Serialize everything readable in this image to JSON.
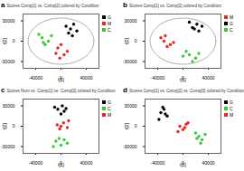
{
  "chart_data": [
    {
      "type": "scatter",
      "panel": "a",
      "title": "Scores Comp[1] vs. Comp[2] colored by Condition",
      "x_label": "t[1]",
      "y_label": "t[2]",
      "xlim": [
        -60000,
        60000
      ],
      "xticks": [
        -40000,
        0,
        40000
      ],
      "ylim": [
        -40000,
        40000
      ],
      "yticks": [
        -30000,
        0,
        30000
      ],
      "ellipse": {
        "x_radius": 52000,
        "y_radius": 34000
      },
      "series": [
        {
          "name": "G",
          "color": "#000000",
          "values": [
            [
              8000,
              22000
            ],
            [
              15000,
              18000
            ],
            [
              20000,
              25000
            ],
            [
              12000,
              12000
            ],
            [
              25000,
              15000
            ],
            [
              18000,
              8000
            ]
          ]
        },
        {
          "name": "M",
          "color": "#e8281e",
          "values": [
            [
              -5000,
              -10000
            ],
            [
              5000,
              -20000
            ],
            [
              -2000,
              -25000
            ],
            [
              10000,
              -15000
            ],
            [
              0,
              -5000
            ],
            [
              -8000,
              -18000
            ]
          ]
        },
        {
          "name": "C",
          "color": "#3cc83c",
          "values": [
            [
              -30000,
              5000
            ],
            [
              -25000,
              -5000
            ],
            [
              -35000,
              10000
            ],
            [
              -20000,
              0
            ],
            [
              -28000,
              -2000
            ],
            [
              -15000,
              8000
            ]
          ]
        }
      ]
    },
    {
      "type": "scatter",
      "panel": "b",
      "title": "Scores Comp[1] vs. Comp[2] colored by Condition",
      "x_label": "t[1]",
      "y_label": "t[2]",
      "xlim": [
        -60000,
        60000
      ],
      "xticks": [
        -40000,
        0,
        40000
      ],
      "ylim": [
        -40000,
        40000
      ],
      "yticks": [
        -30000,
        0,
        30000
      ],
      "ellipse": {
        "x_radius": 52000,
        "y_radius": 34000
      },
      "series": [
        {
          "name": "M",
          "color": "#e8281e",
          "values": [
            [
              -30000,
              0
            ],
            [
              -25000,
              -8000
            ],
            [
              -35000,
              5000
            ],
            [
              -20000,
              -5000
            ],
            [
              -28000,
              8000
            ],
            [
              -15000,
              -2000
            ]
          ]
        },
        {
          "name": "G",
          "color": "#000000",
          "values": [
            [
              15000,
              20000
            ],
            [
              22000,
              25000
            ],
            [
              10000,
              28000
            ],
            [
              25000,
              15000
            ],
            [
              18000,
              18000
            ],
            [
              30000,
              22000
            ]
          ]
        },
        {
          "name": "C",
          "color": "#3cc83c",
          "values": [
            [
              10000,
              -20000
            ],
            [
              20000,
              -25000
            ],
            [
              5000,
              -15000
            ],
            [
              15000,
              -30000
            ],
            [
              25000,
              -18000
            ],
            [
              0,
              -22000
            ]
          ]
        }
      ]
    },
    {
      "type": "scatter",
      "panel": "c",
      "title": "Scores Num vs. Comp[1] vs. Comp[2] colored by Condition",
      "x_label": "t[1]",
      "y_label": "t[2]",
      "xlim": [
        -60000,
        60000
      ],
      "xticks": [
        -40000,
        0,
        40000
      ],
      "ylim": [
        -40000,
        40000
      ],
      "yticks": [
        -30000,
        0,
        30000
      ],
      "series": [
        {
          "name": "G",
          "color": "#000000",
          "values": [
            [
              -5000,
              25000
            ],
            [
              2000,
              30000
            ],
            [
              5000,
              22000
            ],
            [
              -10000,
              28000
            ],
            [
              0,
              18000
            ],
            [
              8000,
              26000
            ]
          ]
        },
        {
          "name": "C",
          "color": "#3cc83c",
          "values": [
            [
              -8000,
              -22000
            ],
            [
              0,
              -28000
            ],
            [
              5000,
              -20000
            ],
            [
              -12000,
              -30000
            ],
            [
              10000,
              -25000
            ],
            [
              -3000,
              -18000
            ]
          ]
        },
        {
          "name": "M",
          "color": "#e8281e",
          "values": [
            [
              -6000,
              2000
            ],
            [
              4000,
              5000
            ],
            [
              10000,
              -2000
            ],
            [
              -2000,
              -4000
            ],
            [
              12000,
              8000
            ],
            [
              0,
              0
            ]
          ]
        }
      ]
    },
    {
      "type": "scatter",
      "panel": "d",
      "title": "Scores Comp[1] vs. Comp[2] vs. Comp[3] colored by Condition",
      "x_label": "t[1]",
      "y_label": "t[2]",
      "xlim": [
        -60000,
        60000
      ],
      "xticks": [
        -40000,
        0,
        40000
      ],
      "ylim": [
        -40000,
        40000
      ],
      "yticks": [
        -30000,
        0,
        30000
      ],
      "series": [
        {
          "name": "G",
          "color": "#000000",
          "values": [
            [
              -35000,
              20000
            ],
            [
              -30000,
              25000
            ],
            [
              -25000,
              15000
            ],
            [
              -38000,
              10000
            ],
            [
              -28000,
              18000
            ],
            [
              -32000,
              28000
            ]
          ]
        },
        {
          "name": "C",
          "color": "#3cc83c",
          "values": [
            [
              25000,
              -15000
            ],
            [
              30000,
              -20000
            ],
            [
              20000,
              -10000
            ],
            [
              35000,
              -12000
            ],
            [
              28000,
              -25000
            ],
            [
              22000,
              -18000
            ]
          ]
        },
        {
          "name": "M",
          "color": "#e8281e",
          "values": [
            [
              -5000,
              0
            ],
            [
              0,
              -5000
            ],
            [
              5000,
              3000
            ],
            [
              -8000,
              -8000
            ],
            [
              3000,
              -2000
            ],
            [
              8000,
              5000
            ]
          ]
        }
      ]
    }
  ]
}
